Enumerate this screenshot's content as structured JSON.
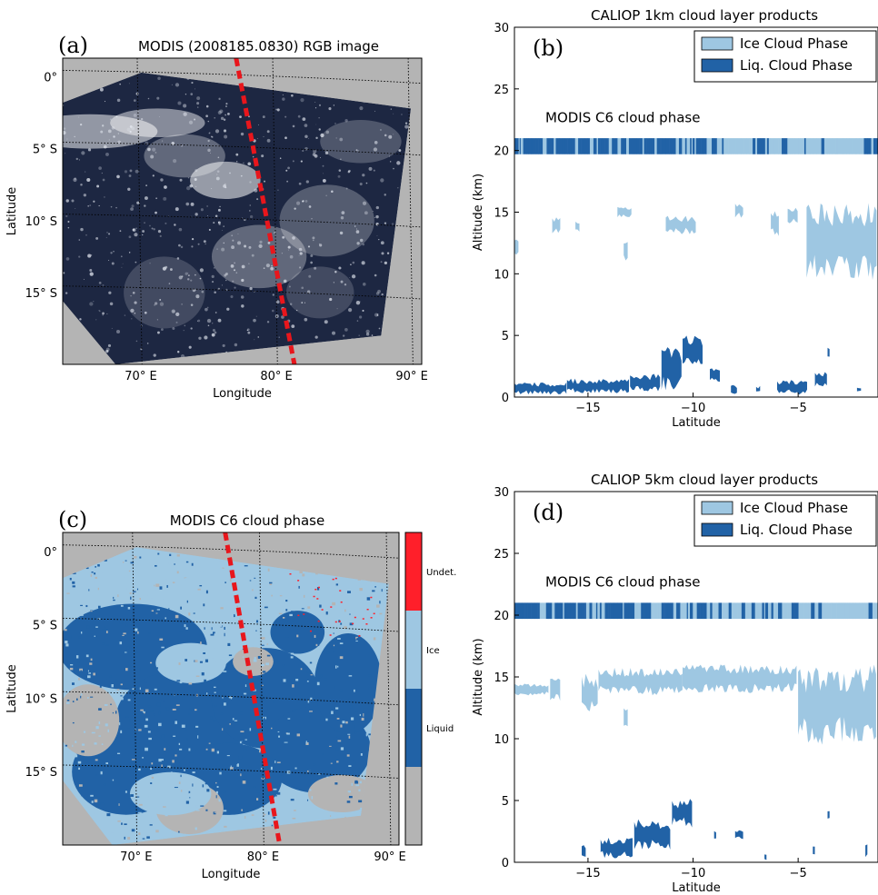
{
  "colors": {
    "map_background": "#b4b4b4",
    "ice": "#9ec7e2",
    "liquid": "#2162a6",
    "undetermined": "#ff1f2a",
    "track": "#e8161c",
    "rgb_scene": "#1d2742"
  },
  "chart_data": [
    {
      "id": "a",
      "type": "image-map",
      "panel_label": "(a)",
      "title": "MODIS (2008185.0830) RGB image",
      "xlabel": "Longitude",
      "ylabel": "Latitude",
      "xlim": [
        64.5,
        91
      ],
      "ylim": [
        -20,
        1.3
      ],
      "x_ticks": [
        {
          "v": 70,
          "label": "70° E"
        },
        {
          "v": 80,
          "label": "80° E"
        },
        {
          "v": 90,
          "label": "90° E"
        }
      ],
      "y_ticks": [
        {
          "v": 0,
          "label": "0°"
        },
        {
          "v": -5,
          "label": "5° S"
        },
        {
          "v": -10,
          "label": "10° S"
        },
        {
          "v": -15,
          "label": "15° S"
        }
      ],
      "scene_corners": [
        [
          70.3,
          0.3
        ],
        [
          90.2,
          -2.2
        ],
        [
          88.0,
          -18.0
        ],
        [
          68.4,
          -20.0
        ],
        [
          64.5,
          -15.6
        ],
        [
          64.5,
          -1.8
        ]
      ],
      "track": [
        [
          77.3,
          1.3
        ],
        [
          81.6,
          -20.0
        ]
      ]
    },
    {
      "id": "b",
      "type": "profile",
      "panel_label": "(b)",
      "title": "CALIOP 1km cloud layer products",
      "xlabel": "Latitude",
      "ylabel": "Altitude (km)",
      "xlim": [
        -18.5,
        -1.2
      ],
      "ylim": [
        0,
        30
      ],
      "x_ticks": [
        -15,
        -10,
        -5
      ],
      "y_ticks": [
        0,
        5,
        10,
        15,
        20,
        25,
        30
      ],
      "legend": [
        "Ice Cloud Phase",
        "Liq. Cloud Phase"
      ],
      "legend_loc": "upper right",
      "annotation": "MODIS C6 cloud phase",
      "modis_strip": {
        "y": [
          19.7,
          21.0
        ]
      },
      "ice_features": [
        {
          "x": [
            -18.5,
            -18.3
          ],
          "bottom": 11.5,
          "top": 12.8
        },
        {
          "x": [
            -16.7,
            -16.3
          ],
          "bottom": 13.3,
          "top": 14.6
        },
        {
          "x": [
            -15.6,
            -15.4
          ],
          "bottom": 13.4,
          "top": 14.3
        },
        {
          "x": [
            -13.6,
            -12.9
          ],
          "bottom": 14.5,
          "top": 15.5
        },
        {
          "x": [
            -13.3,
            -13.1
          ],
          "bottom": 11.0,
          "top": 12.6
        },
        {
          "x": [
            -11.3,
            -9.8
          ],
          "bottom": 13.2,
          "top": 14.7
        },
        {
          "x": [
            -8.0,
            -7.6
          ],
          "bottom": 14.5,
          "top": 15.8
        },
        {
          "x": [
            -6.3,
            -5.9
          ],
          "bottom": 13.0,
          "top": 15.1
        },
        {
          "x": [
            -5.5,
            -5.0
          ],
          "bottom": 14.0,
          "top": 15.4
        },
        {
          "x": [
            -4.6,
            -1.2
          ],
          "bottom": 9.5,
          "top": 16.0
        }
      ],
      "liquid_features": [
        {
          "x": [
            -18.5,
            -16.0
          ],
          "bottom": 0.2,
          "top": 1.2
        },
        {
          "x": [
            -16.0,
            -13.0
          ],
          "bottom": 0.3,
          "top": 1.5
        },
        {
          "x": [
            -13.0,
            -11.5
          ],
          "bottom": 0.4,
          "top": 1.9
        },
        {
          "x": [
            -11.5,
            -10.5
          ],
          "bottom": 0.5,
          "top": 4.2
        },
        {
          "x": [
            -10.5,
            -9.5
          ],
          "bottom": 2.5,
          "top": 5.0
        },
        {
          "x": [
            -9.2,
            -8.7
          ],
          "bottom": 1.2,
          "top": 2.4
        },
        {
          "x": [
            -8.2,
            -7.9
          ],
          "bottom": 0.2,
          "top": 1.0
        },
        {
          "x": [
            -7.0,
            -6.8
          ],
          "bottom": 0.3,
          "top": 0.9
        },
        {
          "x": [
            -6.0,
            -4.5
          ],
          "bottom": 0.2,
          "top": 1.4
        },
        {
          "x": [
            -4.2,
            -3.6
          ],
          "bottom": 0.8,
          "top": 2.1
        },
        {
          "x": [
            -3.6,
            -3.5
          ],
          "bottom": 3.2,
          "top": 4.1
        },
        {
          "x": [
            -2.2,
            -2.0
          ],
          "bottom": 0.4,
          "top": 0.8
        }
      ]
    },
    {
      "id": "c",
      "type": "image-map",
      "panel_label": "(c)",
      "title": "MODIS C6 cloud phase",
      "xlabel": "Longitude",
      "ylabel": "Latitude",
      "xlim": [
        64.5,
        91
      ],
      "ylim": [
        -20,
        1.3
      ],
      "x_ticks": [
        {
          "v": 70,
          "label": "70° E"
        },
        {
          "v": 80,
          "label": "80° E"
        },
        {
          "v": 90,
          "label": "90° E"
        }
      ],
      "y_ticks": [
        {
          "v": 0,
          "label": "0°"
        },
        {
          "v": -5,
          "label": "5° S"
        },
        {
          "v": -10,
          "label": "10° S"
        },
        {
          "v": -15,
          "label": "15° S"
        }
      ],
      "scene_corners": [
        [
          70.3,
          0.3
        ],
        [
          90.2,
          -2.2
        ],
        [
          88.0,
          -18.0
        ],
        [
          68.4,
          -20.0
        ],
        [
          64.5,
          -15.6
        ],
        [
          64.5,
          -1.8
        ]
      ],
      "track": [
        [
          77.3,
          1.3
        ],
        [
          81.6,
          -20.0
        ]
      ],
      "colorbar": [
        {
          "label": "Undet.",
          "color": "#ff1f2a"
        },
        {
          "label": "Ice",
          "color": "#9ec7e2"
        },
        {
          "label": "Liquid",
          "color": "#2162a6"
        },
        {
          "label": "",
          "color": "#b4b4b4"
        }
      ]
    },
    {
      "id": "d",
      "type": "profile",
      "panel_label": "(d)",
      "title": "CALIOP 5km cloud layer products",
      "xlabel": "Latitude",
      "ylabel": "Altitude (km)",
      "xlim": [
        -18.5,
        -1.2
      ],
      "ylim": [
        0,
        30
      ],
      "x_ticks": [
        -15,
        -10,
        -5
      ],
      "y_ticks": [
        0,
        5,
        10,
        15,
        20,
        25,
        30
      ],
      "legend": [
        "Ice Cloud Phase",
        "Liq. Cloud Phase"
      ],
      "legend_loc": "upper right",
      "annotation": "MODIS C6 cloud phase",
      "modis_strip": {
        "y": [
          19.7,
          21.0
        ]
      },
      "ice_features": [
        {
          "x": [
            -18.5,
            -16.8
          ],
          "bottom": 13.5,
          "top": 14.5
        },
        {
          "x": [
            -16.8,
            -16.3
          ],
          "bottom": 13.0,
          "top": 15.0
        },
        {
          "x": [
            -15.3,
            -14.5
          ],
          "bottom": 12.0,
          "top": 15.3
        },
        {
          "x": [
            -14.5,
            -10.5
          ],
          "bottom": 13.5,
          "top": 15.8
        },
        {
          "x": [
            -13.3,
            -13.1
          ],
          "bottom": 11.0,
          "top": 12.6
        },
        {
          "x": [
            -10.5,
            -5.0
          ],
          "bottom": 13.7,
          "top": 16.0
        },
        {
          "x": [
            -5.0,
            -1.2
          ],
          "bottom": 9.5,
          "top": 16.0
        }
      ],
      "liquid_features": [
        {
          "x": [
            -15.3,
            -15.1
          ],
          "bottom": 0.3,
          "top": 1.4
        },
        {
          "x": [
            -14.4,
            -12.8
          ],
          "bottom": 0.3,
          "top": 2.0
        },
        {
          "x": [
            -12.8,
            -11.0
          ],
          "bottom": 1.0,
          "top": 3.5
        },
        {
          "x": [
            -11.0,
            -10.0
          ],
          "bottom": 2.8,
          "top": 5.2
        },
        {
          "x": [
            -9.0,
            -8.9
          ],
          "bottom": 1.8,
          "top": 2.6
        },
        {
          "x": [
            -8.0,
            -7.6
          ],
          "bottom": 1.8,
          "top": 2.6
        },
        {
          "x": [
            -6.6,
            -6.5
          ],
          "bottom": 0.1,
          "top": 0.7
        },
        {
          "x": [
            -4.3,
            -4.2
          ],
          "bottom": 0.3,
          "top": 1.4
        },
        {
          "x": [
            -3.6,
            -3.5
          ],
          "bottom": 3.5,
          "top": 4.2
        },
        {
          "x": [
            -1.8,
            -1.7
          ],
          "bottom": 0.3,
          "top": 1.5
        }
      ]
    }
  ]
}
